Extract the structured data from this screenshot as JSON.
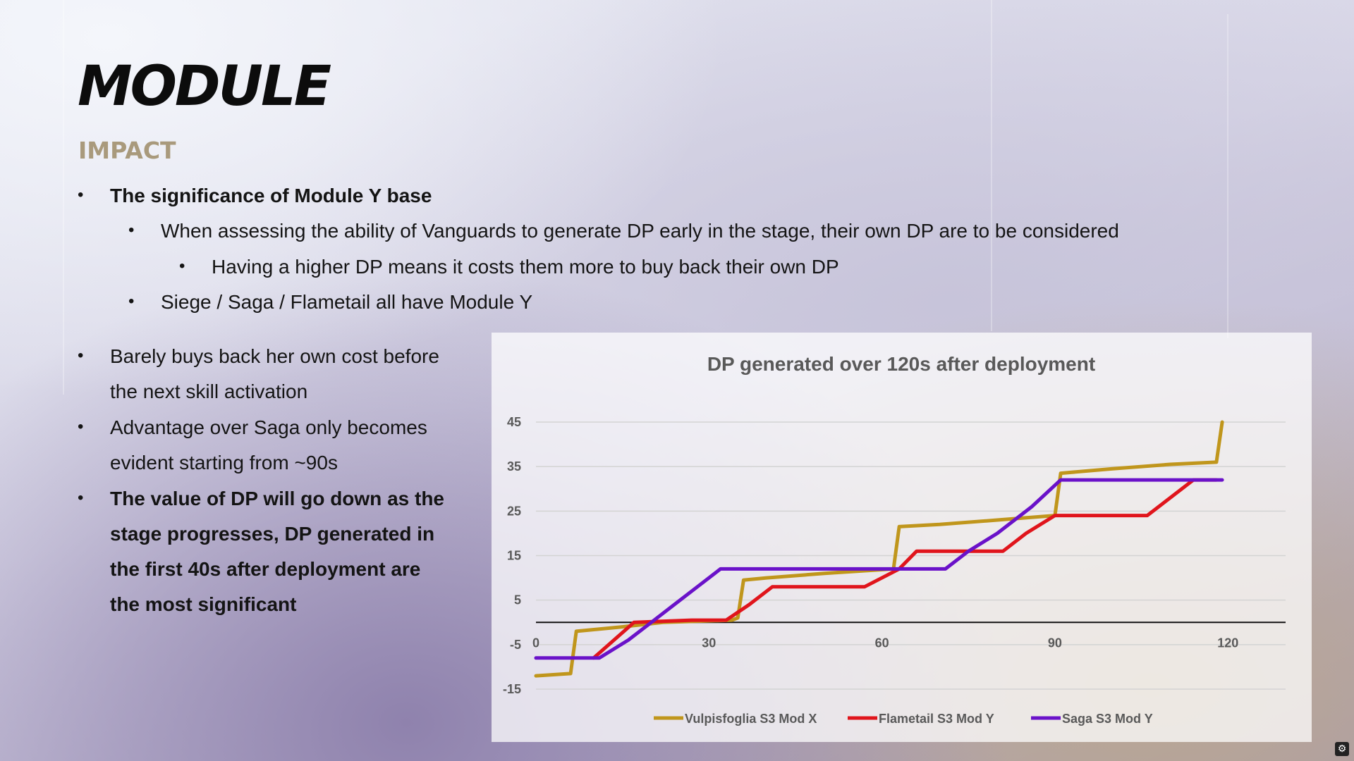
{
  "slide": {
    "title": "MODULE",
    "subtitle": "IMPACT"
  },
  "bullets_top": [
    {
      "level": 1,
      "bold": true,
      "text": "The significance of Module Y base"
    },
    {
      "level": 2,
      "bold": false,
      "text": "When assessing the ability of Vanguards to generate DP early in the stage, their own DP are to be considered"
    },
    {
      "level": 3,
      "bold": false,
      "text": "Having a higher DP means it costs them more to buy back their own DP"
    },
    {
      "level": 2,
      "bold": false,
      "text": "Siege / Saga / Flametail all have Module Y"
    }
  ],
  "bullets_left": [
    {
      "lines": [
        "Barely buys back her own cost before",
        "the next skill activation"
      ],
      "bold": false
    },
    {
      "lines": [
        "Advantage over Saga only becomes",
        "evident starting from ~90s"
      ],
      "bold": false
    },
    {
      "lines": [
        "The value of DP will go down as the",
        "stage progresses, DP generated in",
        "the first 40s after deployment are",
        "the most significant"
      ],
      "bold": true
    }
  ],
  "bullet_char": "•",
  "corner_icon": "settings-icon",
  "chart_data": {
    "type": "line",
    "title": "DP generated over 120s after deployment",
    "xlabel": "",
    "ylabel": "",
    "xlim": [
      0,
      130
    ],
    "ylim": [
      -15,
      45
    ],
    "x_ticks": [
      0,
      30,
      60,
      90,
      120
    ],
    "y_ticks": [
      -15,
      -5,
      5,
      15,
      25,
      35,
      45
    ],
    "grid": true,
    "legend_position": "bottom",
    "series": [
      {
        "name": "Vulpisfoglia S3 Mod X",
        "color": "#c0961c",
        "points": [
          [
            0,
            -12
          ],
          [
            6,
            -11.5
          ],
          [
            7,
            -2
          ],
          [
            15,
            -1
          ],
          [
            22,
            0
          ],
          [
            34,
            0.5
          ],
          [
            35,
            1
          ],
          [
            36,
            9.5
          ],
          [
            40,
            10
          ],
          [
            50,
            11
          ],
          [
            62,
            12
          ],
          [
            63,
            21.5
          ],
          [
            70,
            22
          ],
          [
            80,
            23
          ],
          [
            90,
            24
          ],
          [
            91,
            33.5
          ],
          [
            100,
            34.5
          ],
          [
            110,
            35.5
          ],
          [
            118,
            36
          ],
          [
            119,
            45
          ]
        ]
      },
      {
        "name": "Flametail S3 Mod Y",
        "color": "#e0151c",
        "points": [
          [
            10,
            -8
          ],
          [
            17,
            0
          ],
          [
            27,
            0.5
          ],
          [
            33,
            0.5
          ],
          [
            37,
            4
          ],
          [
            41,
            8
          ],
          [
            48,
            8
          ],
          [
            57,
            8
          ],
          [
            63,
            12
          ],
          [
            66,
            16
          ],
          [
            76,
            16
          ],
          [
            81,
            16
          ],
          [
            85,
            20
          ],
          [
            90,
            24
          ],
          [
            103,
            24
          ],
          [
            106,
            24
          ],
          [
            110,
            28
          ],
          [
            114,
            32
          ],
          [
            118,
            32
          ]
        ]
      },
      {
        "name": "Saga S3 Mod Y",
        "color": "#6a12c9",
        "points": [
          [
            0,
            -8
          ],
          [
            11,
            -8
          ],
          [
            16,
            -4
          ],
          [
            20,
            0
          ],
          [
            24,
            4
          ],
          [
            28,
            8
          ],
          [
            32,
            12
          ],
          [
            40,
            12
          ],
          [
            50,
            12
          ],
          [
            60,
            12
          ],
          [
            65,
            12
          ],
          [
            71,
            12
          ],
          [
            75,
            16
          ],
          [
            80,
            20
          ],
          [
            86,
            26
          ],
          [
            91,
            32
          ],
          [
            100,
            32
          ],
          [
            110,
            32
          ],
          [
            119,
            32
          ]
        ]
      }
    ]
  }
}
